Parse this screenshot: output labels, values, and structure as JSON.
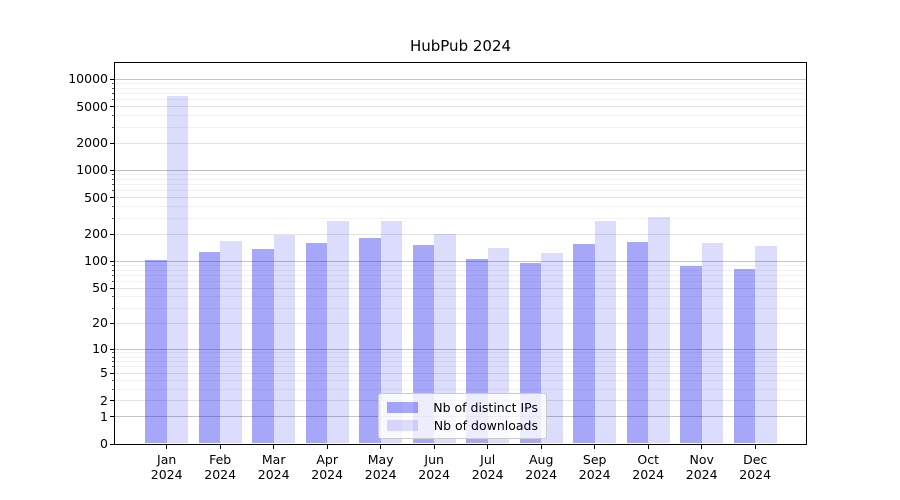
{
  "title": "HubPub 2024",
  "legend": {
    "items": [
      {
        "label": "Nb of distinct IPs",
        "color": "rgba(10,10,242,0.36)"
      },
      {
        "label": "Nb of downloads",
        "color": "rgba(10,10,242,0.14)"
      }
    ]
  },
  "chart_data": {
    "type": "bar",
    "title": "HubPub 2024",
    "categories": [
      "Jan 2024",
      "Feb 2024",
      "Mar 2024",
      "Apr 2024",
      "May 2024",
      "Jun 2024",
      "Jul 2024",
      "Aug 2024",
      "Sep 2024",
      "Oct 2024",
      "Nov 2024",
      "Dec 2024"
    ],
    "series": [
      {
        "name": "Nb of distinct IPs",
        "color": "rgba(10,10,242,0.36)",
        "values": [
          104,
          128,
          137,
          159,
          182,
          151,
          105,
          96,
          155,
          162,
          89,
          82
        ]
      },
      {
        "name": "Nb of downloads",
        "color": "rgba(10,10,242,0.14)",
        "values": [
          6600,
          167,
          196,
          278,
          280,
          200,
          139,
          124,
          278,
          305,
          160,
          149
        ]
      }
    ],
    "xlabel": "",
    "ylabel": "",
    "yscale": "symlog",
    "yticks": [
      0,
      1,
      2,
      5,
      10,
      20,
      50,
      100,
      200,
      500,
      1000,
      2000,
      5000,
      10000
    ],
    "ylim": [
      0,
      15500
    ],
    "grid": "on",
    "legend_position": "lower center"
  }
}
